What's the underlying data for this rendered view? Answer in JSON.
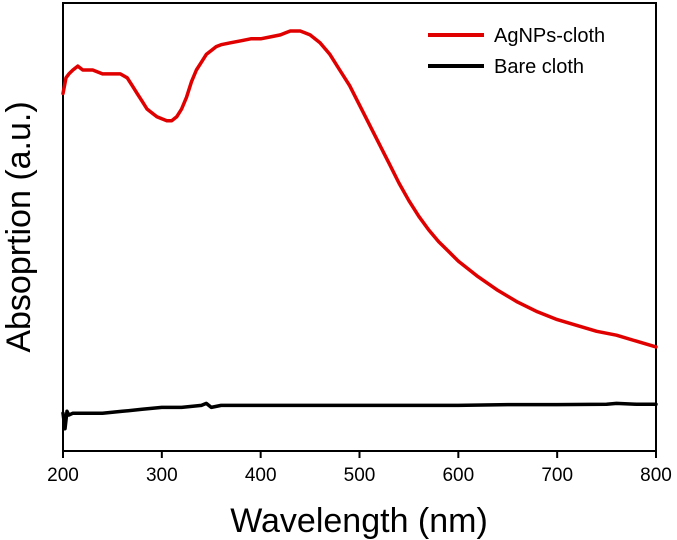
{
  "chart_data": {
    "type": "line",
    "title": "",
    "xlabel": "Wavelength (nm)",
    "ylabel": "Absoprtion (a.u.)",
    "xlim": [
      200,
      800
    ],
    "ylim": [
      0,
      1
    ],
    "x_ticks": [
      200,
      300,
      400,
      500,
      600,
      700,
      800
    ],
    "x_tick_labels": [
      "200",
      "300",
      "400",
      "500",
      "600",
      "700",
      "800"
    ],
    "y_tick_labels_shown": false,
    "grid": false,
    "legend_position": "top-right",
    "series": [
      {
        "name": "AgNPs-cloth",
        "color": "#e00000",
        "x": [
          200,
          203,
          206,
          210,
          215,
          220,
          230,
          240,
          250,
          258,
          265,
          270,
          275,
          280,
          285,
          290,
          295,
          300,
          305,
          310,
          315,
          320,
          325,
          330,
          335,
          340,
          345,
          350,
          355,
          360,
          370,
          380,
          390,
          400,
          410,
          420,
          425,
          430,
          435,
          440,
          445,
          450,
          460,
          470,
          480,
          490,
          500,
          510,
          520,
          530,
          540,
          550,
          560,
          570,
          580,
          590,
          600,
          620,
          640,
          660,
          680,
          700,
          720,
          740,
          760,
          780,
          800
        ],
        "values": [
          0.84,
          0.88,
          0.89,
          0.9,
          0.91,
          0.9,
          0.9,
          0.89,
          0.89,
          0.89,
          0.88,
          0.86,
          0.84,
          0.82,
          0.8,
          0.79,
          0.78,
          0.775,
          0.77,
          0.77,
          0.78,
          0.8,
          0.83,
          0.87,
          0.9,
          0.92,
          0.94,
          0.95,
          0.96,
          0.965,
          0.97,
          0.975,
          0.98,
          0.98,
          0.985,
          0.99,
          0.995,
          1.0,
          1.0,
          1.0,
          0.995,
          0.99,
          0.97,
          0.94,
          0.9,
          0.86,
          0.81,
          0.76,
          0.71,
          0.66,
          0.61,
          0.565,
          0.525,
          0.49,
          0.46,
          0.435,
          0.41,
          0.37,
          0.335,
          0.305,
          0.28,
          0.26,
          0.245,
          0.23,
          0.22,
          0.205,
          0.19
        ]
      },
      {
        "name": "Bare cloth",
        "color": "#000000",
        "x": [
          200,
          202,
          204,
          206,
          210,
          220,
          240,
          260,
          280,
          300,
          320,
          340,
          345,
          350,
          360,
          380,
          400,
          450,
          500,
          550,
          600,
          650,
          700,
          750,
          760,
          780,
          800
        ],
        "values": [
          0.02,
          -0.02,
          0.025,
          0.015,
          0.02,
          0.02,
          0.02,
          0.025,
          0.03,
          0.035,
          0.035,
          0.04,
          0.045,
          0.035,
          0.04,
          0.04,
          0.04,
          0.04,
          0.04,
          0.04,
          0.04,
          0.042,
          0.042,
          0.043,
          0.045,
          0.043,
          0.043
        ]
      }
    ]
  }
}
